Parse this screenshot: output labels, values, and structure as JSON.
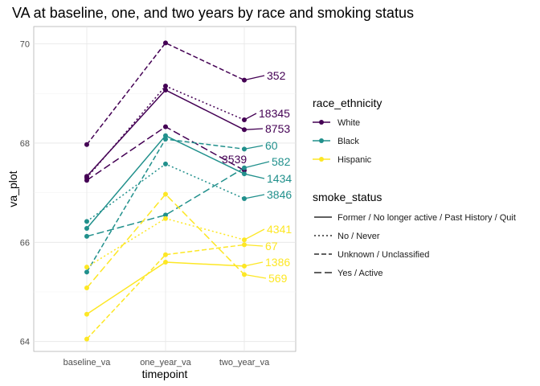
{
  "chart_data": {
    "type": "line",
    "title": "VA at baseline, one, and two years by race and smoking status",
    "xlabel": "timepoint",
    "ylabel": "va_plot",
    "categories": [
      "baseline_va",
      "one_year_va",
      "two_year_va"
    ],
    "ylim": [
      63.8,
      70.35
    ],
    "yticks": [
      64,
      66,
      68,
      70
    ],
    "grid": true,
    "legend_position": "right",
    "colors": {
      "White": "#440154",
      "Black": "#21908C",
      "Hispanic": "#FDE725"
    },
    "dash_styles": {
      "Former / No longer active / Past History / Quit": "",
      "No / Never": "2,3",
      "Unknown / Unclassified": "6,3",
      "Yes / Active": "9,4"
    },
    "series": [
      {
        "race": "White",
        "smoke": "Former / No longer active / Past History / Quit",
        "values": [
          67.33,
          69.07,
          68.27
        ],
        "label": "8753"
      },
      {
        "race": "White",
        "smoke": "No / Never",
        "values": [
          67.3,
          69.15,
          68.47
        ],
        "label": "18345"
      },
      {
        "race": "White",
        "smoke": "Unknown / Unclassified",
        "values": [
          67.97,
          70.02,
          69.27
        ],
        "label": "352"
      },
      {
        "race": "White",
        "smoke": "Yes / Active",
        "values": [
          67.25,
          68.33,
          67.45
        ],
        "label": "3539"
      },
      {
        "race": "Black",
        "smoke": "Former / No longer active / Past History / Quit",
        "values": [
          66.28,
          68.15,
          67.38
        ],
        "label": "1434"
      },
      {
        "race": "Black",
        "smoke": "No / Never",
        "values": [
          66.42,
          67.58,
          66.88
        ],
        "label": "3846"
      },
      {
        "race": "Black",
        "smoke": "Unknown / Unclassified",
        "values": [
          65.4,
          68.08,
          67.88
        ],
        "label": "60"
      },
      {
        "race": "Black",
        "smoke": "Yes / Active",
        "values": [
          66.12,
          66.55,
          67.5
        ],
        "label": "582"
      },
      {
        "race": "Hispanic",
        "smoke": "Former / No longer active / Past History / Quit",
        "values": [
          64.55,
          65.6,
          65.52
        ],
        "label": "1386"
      },
      {
        "race": "Hispanic",
        "smoke": "No / Never",
        "values": [
          65.5,
          66.48,
          66.05
        ],
        "label": "4341"
      },
      {
        "race": "Hispanic",
        "smoke": "Unknown / Unclassified",
        "values": [
          64.05,
          65.75,
          65.95
        ],
        "label": "67"
      },
      {
        "race": "Hispanic",
        "smoke": "Yes / Active",
        "values": [
          65.08,
          66.97,
          65.35
        ],
        "label": "569"
      }
    ],
    "legends": {
      "race_title": "race_ethnicity",
      "race_items": [
        "White",
        "Black",
        "Hispanic"
      ],
      "smoke_title": "smoke_status",
      "smoke_items": [
        "Former / No longer active / Past History / Quit",
        "No / Never",
        "Unknown / Unclassified",
        "Yes / Active"
      ]
    }
  }
}
